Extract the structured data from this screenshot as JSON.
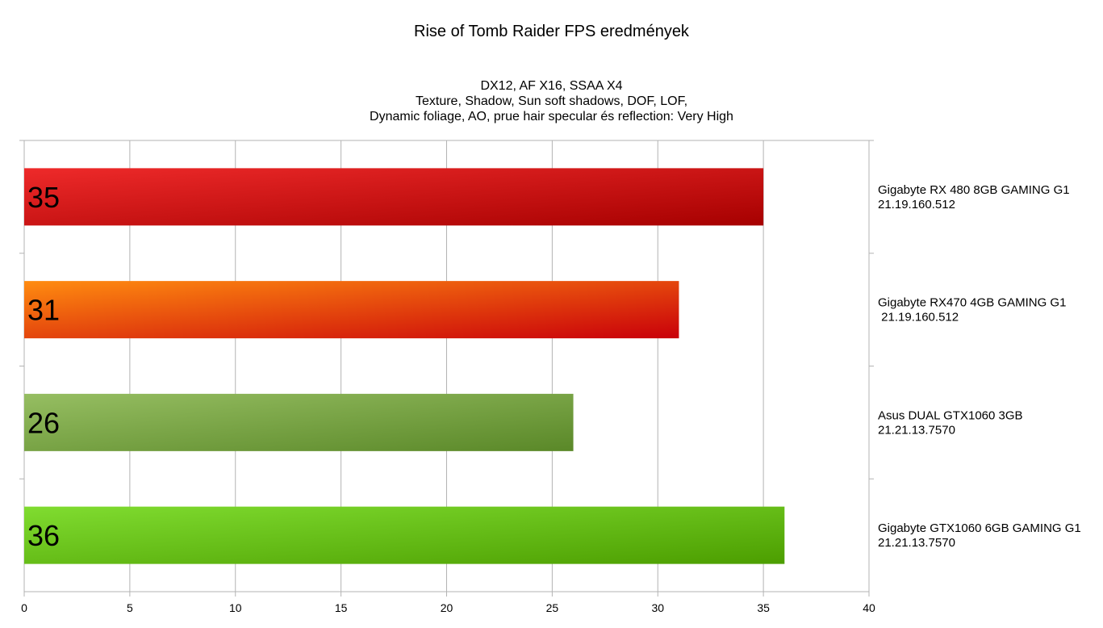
{
  "chart_data": {
    "type": "bar",
    "orientation": "horizontal",
    "title": "Rise of Tomb Raider FPS eredmények",
    "subtitle_lines": [
      "DX12, AF X16, SSAA X4",
      "Texture, Shadow, Sun soft shadows, DOF, LOF,",
      "Dynamic foliage, AO, prue hair specular és reflection: Very High"
    ],
    "categories": [
      {
        "lines": [
          "Gigabyte RX 480 8GB GAMING G1",
          "21.19.160.512"
        ]
      },
      {
        "lines": [
          "Gigabyte RX470 4GB GAMING G1",
          " 21.19.160.512"
        ]
      },
      {
        "lines": [
          "Asus DUAL GTX1060 3GB",
          "21.21.13.7570"
        ]
      },
      {
        "lines": [
          "Gigabyte GTX1060 6GB GAMING G1",
          "21.21.13.7570"
        ]
      }
    ],
    "values": [
      35,
      31,
      26,
      36
    ],
    "bar_colors": [
      [
        "#ee2a2a",
        "#a60000"
      ],
      [
        "#ff8c10",
        "#c9000a"
      ],
      [
        "#96be62",
        "#5a8828"
      ],
      [
        "#80dc30",
        "#4c9e00"
      ]
    ],
    "xlim": [
      0,
      40
    ],
    "xticks": [
      0,
      5,
      10,
      15,
      20,
      25,
      30,
      35,
      40
    ],
    "grid": true,
    "category_labels_position": "right",
    "value_labels_position": "inside-left"
  }
}
